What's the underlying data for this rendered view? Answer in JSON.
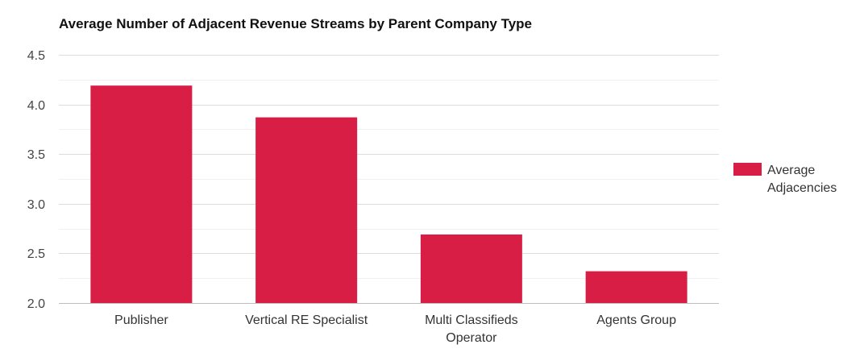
{
  "chart_data": {
    "type": "bar",
    "title": "Average Number of Adjacent Revenue Streams by Parent Company Type",
    "xlabel": "",
    "ylabel": "",
    "categories": [
      "Publisher",
      "Vertical RE Specialist",
      "Multi Classifieds Operator",
      "Agents Group"
    ],
    "category_lines": [
      [
        "Publisher"
      ],
      [
        "Vertical RE Specialist"
      ],
      [
        "Multi Classifieds",
        "Operator"
      ],
      [
        "Agents Group"
      ]
    ],
    "series": [
      {
        "name": "Average Adjacencies",
        "legend_lines": [
          "Average",
          "Adjacencies"
        ],
        "values": [
          4.19,
          3.87,
          2.69,
          2.32
        ],
        "color": "#d81e44"
      }
    ],
    "ylim": [
      2.0,
      4.5
    ],
    "yticks": [
      "2.0",
      "2.5",
      "3.0",
      "3.5",
      "4.0",
      "4.5"
    ],
    "grid": true,
    "legend_position": "right"
  }
}
